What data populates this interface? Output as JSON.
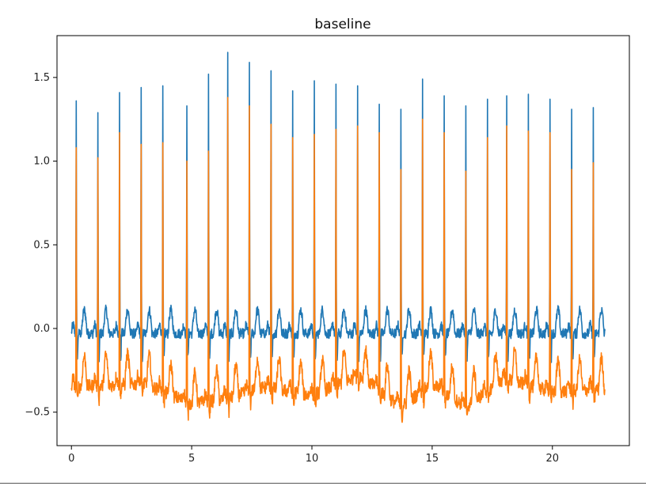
{
  "chart_data": {
    "type": "line",
    "title": "baseline",
    "xlabel": "",
    "ylabel": "",
    "xlim": [
      -0.6,
      23.2
    ],
    "ylim": [
      -0.7,
      1.75
    ],
    "xticks": [
      0,
      5,
      10,
      15,
      20
    ],
    "xtick_labels": [
      "0",
      "5",
      "10",
      "15",
      "20"
    ],
    "yticks": [
      -0.5,
      0.0,
      0.5,
      1.0,
      1.5
    ],
    "ytick_labels": [
      "−0.5",
      "0.0",
      "0.5",
      "1.0",
      "1.5"
    ],
    "grid": false,
    "legend": "none",
    "x_end": 22.2,
    "series": [
      {
        "color": "#1f77b4",
        "baseline": -0.03,
        "noise": 0.03,
        "t_wave": 0.14,
        "s_dip": 0.15,
        "peak_times": [
          0.2,
          1.1,
          2.0,
          2.9,
          3.8,
          4.8,
          5.7,
          6.5,
          7.4,
          8.3,
          9.2,
          10.1,
          11.0,
          11.9,
          12.8,
          13.7,
          14.6,
          15.5,
          16.4,
          17.3,
          18.1,
          19.0,
          19.9,
          20.8,
          21.7
        ],
        "peak_values": [
          1.36,
          1.29,
          1.41,
          1.44,
          1.45,
          1.33,
          1.52,
          1.65,
          1.59,
          1.54,
          1.42,
          1.48,
          1.46,
          1.45,
          1.34,
          1.31,
          1.49,
          1.39,
          1.33,
          1.37,
          1.39,
          1.4,
          1.37,
          1.31,
          1.32
        ]
      },
      {
        "color": "#ff7f0e",
        "baseline": -0.35,
        "noise": 0.04,
        "t_wave": 0.18,
        "s_dip": 0.08,
        "peak_times": [
          0.2,
          1.1,
          2.0,
          2.9,
          3.8,
          4.8,
          5.7,
          6.5,
          7.4,
          8.3,
          9.2,
          10.1,
          11.0,
          11.9,
          12.8,
          13.7,
          14.6,
          15.5,
          16.4,
          17.3,
          18.1,
          19.0,
          19.9,
          20.8,
          21.7
        ],
        "peak_values": [
          1.08,
          1.02,
          1.17,
          1.1,
          1.11,
          1.0,
          1.06,
          1.38,
          1.33,
          1.22,
          1.14,
          1.16,
          1.19,
          1.21,
          1.17,
          0.95,
          1.25,
          1.17,
          0.94,
          1.14,
          1.21,
          1.18,
          1.17,
          0.95,
          0.99
        ],
        "baseline_wander": [
          [
            0,
            -0.35
          ],
          [
            3,
            -0.33
          ],
          [
            5,
            -0.45
          ],
          [
            6.5,
            -0.42
          ],
          [
            8,
            -0.35
          ],
          [
            10,
            -0.4
          ],
          [
            12,
            -0.28
          ],
          [
            13.7,
            -0.47
          ],
          [
            15,
            -0.33
          ],
          [
            16.4,
            -0.47
          ],
          [
            18,
            -0.3
          ],
          [
            20,
            -0.38
          ],
          [
            22.2,
            -0.36
          ]
        ]
      }
    ]
  }
}
